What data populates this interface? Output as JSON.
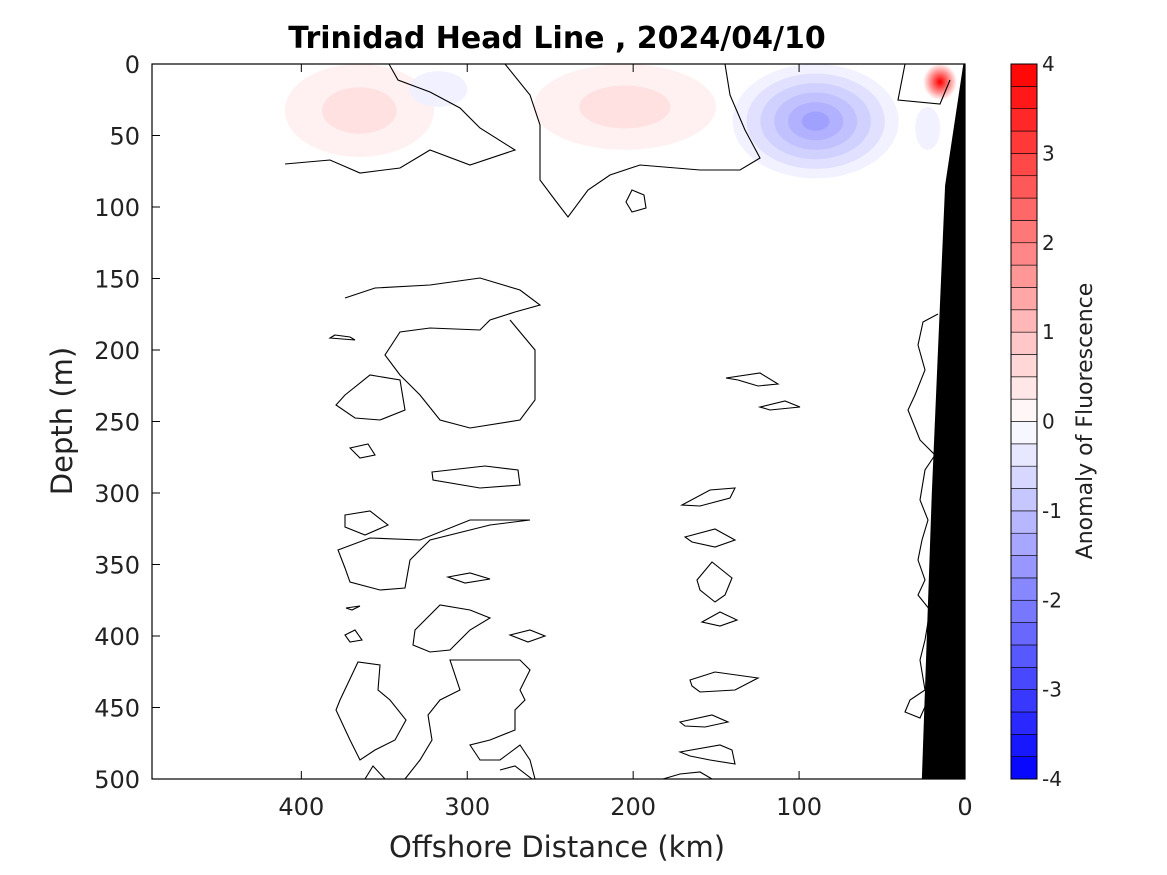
{
  "chart_data": {
    "type": "contour",
    "title": "Trinidad Head Line , 2024/04/10",
    "xlabel": "Offshore Distance (km)",
    "ylabel": "Depth (m)",
    "colorbar_label": "Anomaly of Fluorescence",
    "xlim": [
      490,
      0
    ],
    "ylim": [
      0,
      500
    ],
    "y_reversed": true,
    "x_reversed": true,
    "xticks": [
      400,
      300,
      200,
      100,
      0
    ],
    "yticks": [
      0,
      50,
      100,
      150,
      200,
      250,
      300,
      350,
      400,
      450,
      500
    ],
    "clim": [
      -4,
      4
    ],
    "cbar_ticks": [
      -4,
      -3,
      -2,
      -1,
      0,
      1,
      2,
      3,
      4
    ],
    "contour_levels": [
      -4,
      -3.75,
      -3.5,
      -3.25,
      -3,
      -2.75,
      -2.5,
      -2.25,
      -2,
      -1.75,
      -1.5,
      -1.25,
      -1,
      -0.75,
      -0.5,
      -0.25,
      0,
      0.25,
      0.5,
      0.75,
      1,
      1.25,
      1.5,
      1.75,
      2,
      2.25,
      2.5,
      2.75,
      3,
      3.25,
      3.5,
      3.75,
      4
    ],
    "colormap": {
      "low": "#0000ff",
      "mid": "#ffffff",
      "high": "#ff0000"
    },
    "grid": false,
    "anomaly_regions": [
      {
        "sign": "positive",
        "peak": 0.4,
        "x": [
          410,
          320
        ],
        "depth": [
          0,
          65
        ]
      },
      {
        "sign": "negative",
        "peak": -0.3,
        "x": [
          335,
          300
        ],
        "depth": [
          5,
          30
        ]
      },
      {
        "sign": "positive",
        "peak": 0.5,
        "x": [
          260,
          150
        ],
        "depth": [
          0,
          60
        ]
      },
      {
        "sign": "negative",
        "peak": -1.5,
        "x": [
          140,
          40
        ],
        "depth": [
          0,
          80
        ]
      },
      {
        "sign": "negative",
        "peak": -0.3,
        "x": [
          30,
          15
        ],
        "depth": [
          30,
          60
        ]
      },
      {
        "sign": "positive",
        "peak": 4.0,
        "x": [
          25,
          5
        ],
        "depth": [
          0,
          25
        ]
      }
    ],
    "bathymetry": [
      {
        "x": 1,
        "depth": 0
      },
      {
        "x": 12,
        "depth": 85
      },
      {
        "x": 20,
        "depth": 300
      },
      {
        "x": 26,
        "depth": 500
      }
    ],
    "bathymetry_color": "#000000"
  }
}
